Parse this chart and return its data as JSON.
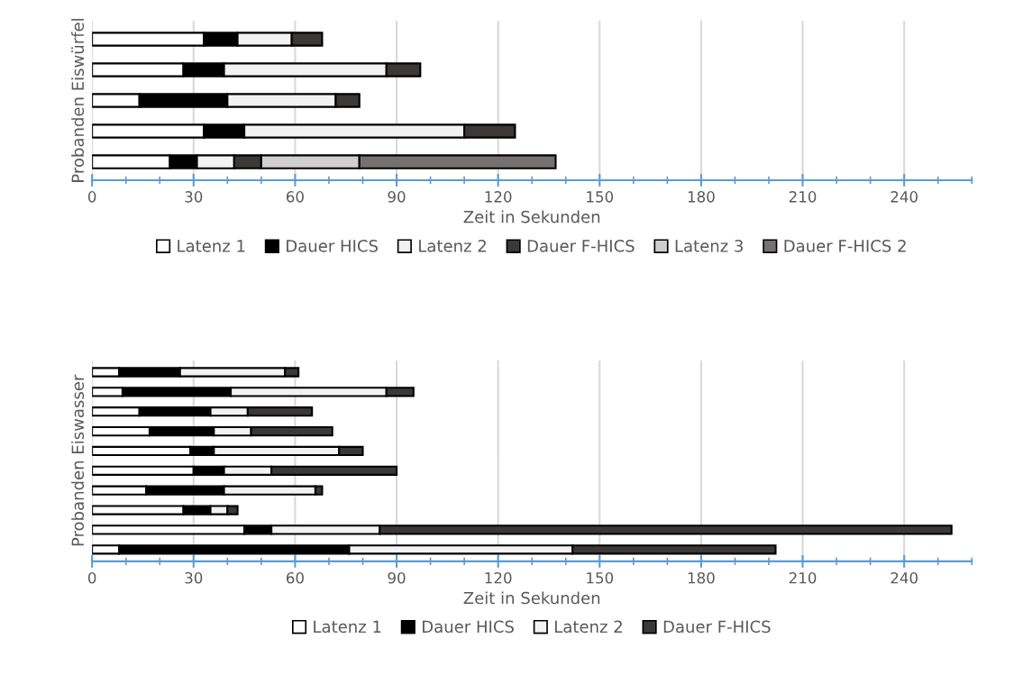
{
  "chart_data": [
    {
      "type": "bar",
      "orientation": "horizontal",
      "stacked": true,
      "ylabel": "Probanden Eiswürfel",
      "xlabel": "Zeit in Sekunden",
      "categories": [
        null,
        null,
        null,
        null,
        null
      ],
      "xlim": [
        0,
        260
      ],
      "xticks": [
        0,
        30,
        60,
        90,
        120,
        150,
        180,
        210,
        240
      ],
      "grid": "x",
      "legend": "bottom",
      "tick_labels": "x",
      "series": [
        {
          "name": "Latenz 1",
          "color": "#ffffff",
          "values": [
            33,
            27,
            14,
            33,
            23
          ]
        },
        {
          "name": "Dauer HICS",
          "color": "#000000",
          "values": [
            10,
            12,
            26,
            12,
            8
          ]
        },
        {
          "name": "Latenz 2",
          "color": "#f2f2f2",
          "values": [
            16,
            48,
            32,
            65,
            11
          ]
        },
        {
          "name": "Dauer F-HICS",
          "color": "#3b3838",
          "values": [
            9,
            10,
            7,
            15,
            8
          ]
        },
        {
          "name": "Latenz 3",
          "color": "#d0cece",
          "values": [
            null,
            null,
            null,
            null,
            29
          ]
        },
        {
          "name": "Dauer F-HICS 2",
          "color": "#767171",
          "values": [
            null,
            null,
            null,
            null,
            58
          ]
        }
      ]
    },
    {
      "type": "bar",
      "orientation": "horizontal",
      "stacked": true,
      "ylabel": "Probanden Eiswasser",
      "xlabel": "Zeit in Sekunden",
      "categories": [
        null,
        null,
        null,
        null,
        null,
        null,
        null,
        null,
        null,
        null
      ],
      "xlim": [
        0,
        260
      ],
      "xticks": [
        0,
        30,
        60,
        90,
        120,
        150,
        180,
        210,
        240
      ],
      "grid": "x",
      "legend": "bottom",
      "tick_labels": "x",
      "series": [
        {
          "name": "Latenz 1",
          "color": "#ffffff",
          "values": [
            8,
            9,
            14,
            17,
            29,
            30,
            16,
            27,
            45,
            8
          ]
        },
        {
          "name": "Dauer HICS",
          "color": "#000000",
          "values": [
            18,
            32,
            21,
            19,
            7,
            9,
            23,
            8,
            8,
            68
          ]
        },
        {
          "name": "Latenz 2",
          "color": "#f2f2f2",
          "values": [
            31,
            46,
            11,
            11,
            37,
            14,
            27,
            5,
            32,
            66
          ]
        },
        {
          "name": "Dauer F-HICS",
          "color": "#3b3838",
          "values": [
            4,
            8,
            19,
            24,
            7,
            37,
            2,
            3,
            169,
            60
          ]
        }
      ]
    }
  ]
}
